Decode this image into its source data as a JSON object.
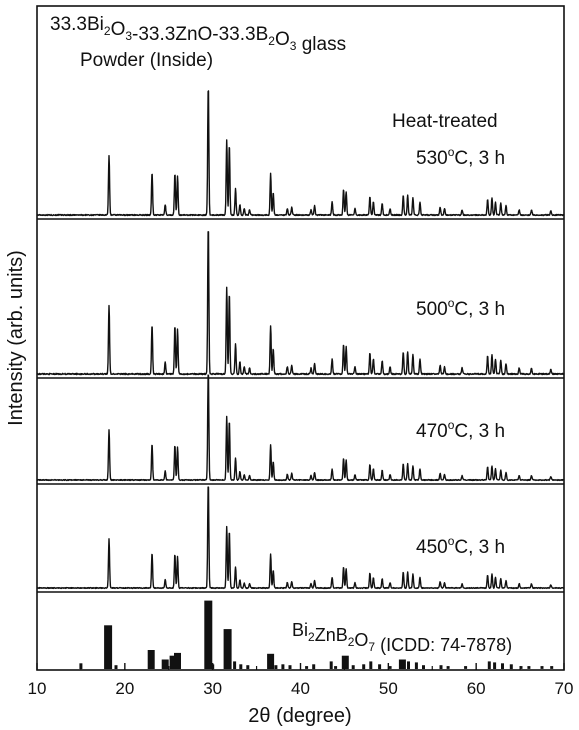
{
  "chart_data": {
    "type": "line",
    "title": "33.3Bi2O3-33.3ZnO-33.3B2O3 glass",
    "title_parts": [
      {
        "t": "33.3Bi",
        "sub": false
      },
      {
        "t": "2",
        "sub": true
      },
      {
        "t": "O",
        "sub": false
      },
      {
        "t": "3",
        "sub": true
      },
      {
        "t": "-33.3ZnO-33.3B",
        "sub": false
      },
      {
        "t": "2",
        "sub": true
      },
      {
        "t": "O",
        "sub": false
      },
      {
        "t": "3",
        "sub": true
      },
      {
        "t": " glass",
        "sub": false
      }
    ],
    "subtitle": "Powder (Inside)",
    "xlabel": "2θ (degree)",
    "ylabel": "Intensity (arb. units)",
    "xlim": [
      10,
      70
    ],
    "xticks": [
      10,
      20,
      30,
      40,
      50,
      60,
      70
    ],
    "grid": false,
    "heat_treated_label": "Heat-treated",
    "reference": {
      "label": "Bi2ZnB2O7 (ICDD: 74-7878)",
      "label_parts": [
        {
          "t": "Bi",
          "sub": false
        },
        {
          "t": "2",
          "sub": true
        },
        {
          "t": "ZnB",
          "sub": false
        },
        {
          "t": "2",
          "sub": true
        },
        {
          "t": "O",
          "sub": false
        },
        {
          "t": "7",
          "sub": true
        },
        {
          "t": " (ICDD: 74-7878)",
          "sub": false
        }
      ],
      "bars": [
        [
          15.0,
          6
        ],
        [
          18.1,
          46
        ],
        [
          19.0,
          4
        ],
        [
          23.0,
          20
        ],
        [
          24.6,
          10
        ],
        [
          25.5,
          14
        ],
        [
          26.0,
          17
        ],
        [
          29.5,
          72
        ],
        [
          30.0,
          5
        ],
        [
          31.7,
          42
        ],
        [
          32.5,
          8
        ],
        [
          33.2,
          5
        ],
        [
          34.0,
          4
        ],
        [
          36.6,
          16
        ],
        [
          37.2,
          4
        ],
        [
          38.0,
          5
        ],
        [
          38.8,
          4
        ],
        [
          40.7,
          3
        ],
        [
          41.5,
          5
        ],
        [
          43.5,
          8
        ],
        [
          44.0,
          3
        ],
        [
          45.1,
          14
        ],
        [
          46.0,
          4
        ],
        [
          47.2,
          5
        ],
        [
          48.0,
          8
        ],
        [
          49.0,
          5
        ],
        [
          50.2,
          3
        ],
        [
          51.6,
          10
        ],
        [
          52.3,
          8
        ],
        [
          53.2,
          7
        ],
        [
          54.0,
          4
        ],
        [
          56.0,
          4
        ],
        [
          56.8,
          3
        ],
        [
          58.8,
          3
        ],
        [
          61.5,
          8
        ],
        [
          62.1,
          7
        ],
        [
          63.0,
          6
        ],
        [
          64.0,
          5
        ],
        [
          65.1,
          3
        ],
        [
          66.0,
          3
        ],
        [
          67.5,
          3
        ],
        [
          68.6,
          3
        ]
      ]
    },
    "series": [
      {
        "name": "530°C, 3 h",
        "temp": "530",
        "unit": "C, 3 h"
      },
      {
        "name": "500°C, 3 h",
        "temp": "500",
        "unit": "C, 3 h"
      },
      {
        "name": "470°C, 3 h",
        "temp": "470",
        "unit": "C, 3 h"
      },
      {
        "name": "450°C, 3 h",
        "temp": "450",
        "unit": "C, 3 h"
      }
    ],
    "peaks": [
      [
        18.2,
        0.46
      ],
      [
        23.1,
        0.33
      ],
      [
        24.6,
        0.08
      ],
      [
        25.7,
        0.32
      ],
      [
        26.0,
        0.3
      ],
      [
        29.5,
        1.0
      ],
      [
        31.6,
        0.58
      ],
      [
        31.9,
        0.54
      ],
      [
        32.6,
        0.2
      ],
      [
        33.1,
        0.08
      ],
      [
        33.6,
        0.05
      ],
      [
        34.2,
        0.04
      ],
      [
        36.6,
        0.32
      ],
      [
        36.9,
        0.17
      ],
      [
        38.5,
        0.05
      ],
      [
        39.0,
        0.06
      ],
      [
        41.2,
        0.04
      ],
      [
        41.6,
        0.07
      ],
      [
        43.6,
        0.1
      ],
      [
        44.9,
        0.2
      ],
      [
        45.2,
        0.18
      ],
      [
        46.2,
        0.05
      ],
      [
        47.9,
        0.14
      ],
      [
        48.3,
        0.1
      ],
      [
        49.3,
        0.09
      ],
      [
        50.2,
        0.05
      ],
      [
        51.7,
        0.15
      ],
      [
        52.2,
        0.15
      ],
      [
        52.8,
        0.13
      ],
      [
        53.6,
        0.1
      ],
      [
        55.9,
        0.06
      ],
      [
        56.4,
        0.05
      ],
      [
        58.4,
        0.04
      ],
      [
        61.3,
        0.12
      ],
      [
        61.8,
        0.13
      ],
      [
        62.2,
        0.1
      ],
      [
        62.8,
        0.09
      ],
      [
        63.4,
        0.07
      ],
      [
        64.9,
        0.04
      ],
      [
        66.3,
        0.04
      ],
      [
        68.5,
        0.03
      ]
    ]
  }
}
